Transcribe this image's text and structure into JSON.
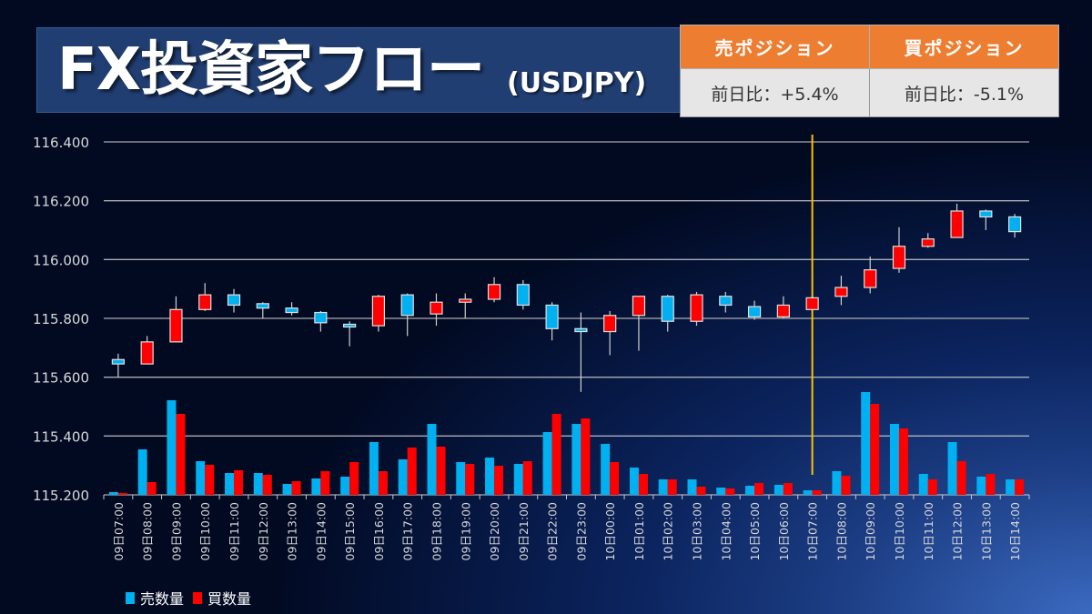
{
  "header": {
    "title": "FX投資家フロー",
    "subtitle": "(USDJPY)"
  },
  "positions": {
    "sell_label": "売ポジション",
    "buy_label": "買ポジション",
    "sell_change": "前日比：+5.4%",
    "buy_change": "前日比：-5.1%"
  },
  "colors": {
    "sell": "#00b0f0",
    "buy": "#ff0000",
    "header_orange": "#ed7d31",
    "marker_line": "#ffc000",
    "grid": "#c8c8c8"
  },
  "chart_data": {
    "type": "candlestick+bar",
    "title": "FX投資家フロー(USDJPY)",
    "ylim": [
      115.2,
      116.4
    ],
    "yticks": [
      "116.400",
      "116.200",
      "116.000",
      "115.800",
      "115.600",
      "115.400",
      "115.200"
    ],
    "ytick_values": [
      116.4,
      116.2,
      116.0,
      115.8,
      115.6,
      115.4,
      115.2
    ],
    "grid": true,
    "legend_position": "bottom-left",
    "legend": [
      "売数量",
      "買数量"
    ],
    "marker_category": "10日07:00",
    "categories": [
      "09日07:00",
      "09日08:00",
      "09日09:00",
      "09日10:00",
      "09日11:00",
      "09日12:00",
      "09日13:00",
      "09日14:00",
      "09日15:00",
      "09日16:00",
      "09日17:00",
      "09日18:00",
      "09日19:00",
      "09日20:00",
      "09日21:00",
      "09日22:00",
      "09日23:00",
      "10日00:00",
      "10日01:00",
      "10日02:00",
      "10日03:00",
      "10日04:00",
      "10日05:00",
      "10日06:00",
      "10日07:00",
      "10日08:00",
      "10日09:00",
      "10日10:00",
      "10日11:00",
      "10日12:00",
      "10日13:00",
      "10日14:00"
    ],
    "ohlc": [
      [
        115.66,
        115.68,
        115.6,
        115.645
      ],
      [
        115.645,
        115.74,
        115.645,
        115.72
      ],
      [
        115.72,
        115.875,
        115.72,
        115.83
      ],
      [
        115.83,
        115.92,
        115.825,
        115.88
      ],
      [
        115.88,
        115.9,
        115.82,
        115.845
      ],
      [
        115.85,
        115.855,
        115.8,
        115.835
      ],
      [
        115.835,
        115.855,
        115.81,
        115.82
      ],
      [
        115.82,
        115.825,
        115.755,
        115.785
      ],
      [
        115.78,
        115.79,
        115.705,
        115.775
      ],
      [
        115.775,
        115.88,
        115.755,
        115.875
      ],
      [
        115.88,
        115.885,
        115.74,
        115.81
      ],
      [
        115.815,
        115.885,
        115.775,
        115.855
      ],
      [
        115.855,
        115.885,
        115.8,
        115.865
      ],
      [
        115.865,
        115.94,
        115.855,
        115.915
      ],
      [
        115.915,
        115.93,
        115.83,
        115.845
      ],
      [
        115.845,
        115.855,
        115.725,
        115.765
      ],
      [
        115.765,
        115.82,
        115.55,
        115.755
      ],
      [
        115.755,
        115.825,
        115.675,
        115.81
      ],
      [
        115.81,
        115.875,
        115.69,
        115.875
      ],
      [
        115.875,
        115.88,
        115.755,
        115.79
      ],
      [
        115.79,
        115.89,
        115.775,
        115.88
      ],
      [
        115.875,
        115.89,
        115.82,
        115.845
      ],
      [
        115.84,
        115.86,
        115.795,
        115.805
      ],
      [
        115.805,
        115.875,
        115.8,
        115.845
      ],
      [
        115.83,
        115.875,
        115.825,
        115.87
      ],
      [
        115.875,
        115.945,
        115.845,
        115.905
      ],
      [
        115.905,
        116.01,
        115.885,
        115.965
      ],
      [
        115.97,
        116.11,
        115.955,
        116.045
      ],
      [
        116.045,
        116.09,
        116.04,
        116.07
      ],
      [
        116.075,
        116.19,
        116.075,
        116.165
      ],
      [
        116.165,
        116.17,
        116.1,
        116.145
      ],
      [
        116.145,
        116.155,
        116.075,
        116.095
      ]
    ],
    "series": [
      {
        "name": "売数量",
        "values": [
          3,
          50,
          104,
          37,
          24,
          24,
          12,
          18,
          20,
          58,
          39,
          78,
          36,
          41,
          34,
          69,
          78,
          56,
          30,
          17,
          17,
          8,
          10,
          11,
          5,
          26,
          113,
          78,
          23,
          58,
          20,
          17
        ]
      },
      {
        "name": "買数量",
        "values": [
          2,
          14,
          89,
          33,
          27,
          22,
          15,
          26,
          36,
          26,
          52,
          53,
          34,
          32,
          37,
          89,
          84,
          36,
          23,
          17,
          9,
          7,
          13,
          13,
          5,
          21,
          100,
          73,
          17,
          37,
          23,
          17
        ]
      }
    ]
  }
}
